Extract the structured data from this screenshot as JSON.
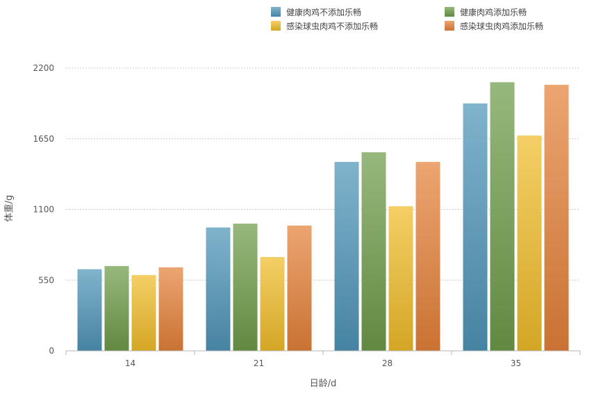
{
  "chart_data": {
    "type": "bar",
    "title": "",
    "xlabel": "日龄/d",
    "ylabel": "体重/g",
    "categories": [
      "14",
      "21",
      "28",
      "35"
    ],
    "yticks": [
      0,
      550,
      1100,
      1650,
      2200
    ],
    "ylim": [
      0,
      2200
    ],
    "grid": true,
    "legend_position": "top",
    "series": [
      {
        "name": "健康肉鸡不添加乐畅",
        "color": "#4f95b8",
        "values": [
          635,
          960,
          1470,
          1925
        ]
      },
      {
        "name": "健康肉鸡添加乐畅",
        "color": "#6e9c4a",
        "values": [
          660,
          990,
          1545,
          2090
        ]
      },
      {
        "name": "感染球虫肉鸡不添加乐畅",
        "color": "#f0bd2a",
        "values": [
          590,
          730,
          1125,
          1675
        ]
      },
      {
        "name": "感染球虫肉鸡添加乐畅",
        "color": "#e4823a",
        "values": [
          650,
          975,
          1470,
          2070
        ]
      }
    ]
  }
}
